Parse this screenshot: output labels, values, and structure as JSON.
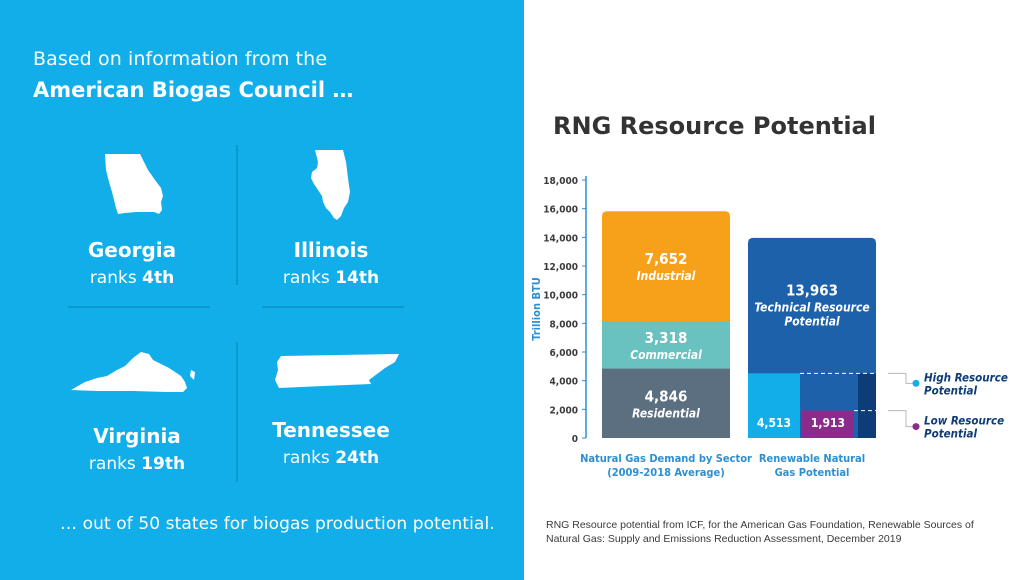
{
  "left_panel": {
    "background": "#12aeea",
    "intro_line1": "Based on information from the",
    "intro_line2": "American Biogas Council …",
    "states": [
      {
        "name": "Georgia",
        "rank_prefix": "ranks ",
        "rank": "4th",
        "icon": "georgia-map-icon"
      },
      {
        "name": "Illinois",
        "rank_prefix": "ranks ",
        "rank": "14th",
        "icon": "illinois-map-icon"
      },
      {
        "name": "Virginia",
        "rank_prefix": "ranks ",
        "rank": "19th",
        "icon": "virginia-map-icon"
      },
      {
        "name": "Tennessee",
        "rank_prefix": "ranks ",
        "rank": "24th",
        "icon": "tennessee-map-icon"
      }
    ],
    "outro": "… out of 50 states for biogas production potential."
  },
  "chart_data": {
    "type": "bar",
    "title": "RNG Resource Potential",
    "ylabel": "Trillion BTU",
    "ylim": [
      0,
      18000
    ],
    "yticks": [
      0,
      2000,
      4000,
      6000,
      8000,
      10000,
      12000,
      14000,
      16000,
      18000
    ],
    "ytick_labels": [
      "0",
      "2,000",
      "4,000",
      "6,000",
      "8,000",
      "10,000",
      "12,000",
      "14,000",
      "16,000",
      "18,000"
    ],
    "categories": [
      {
        "line1": "Natural Gas Demand by Sector",
        "line2": "(2009-2018 Average)"
      },
      {
        "line1": "Renewable Natural",
        "line2": "Gas Potential"
      }
    ],
    "stacks": [
      {
        "category_index": 0,
        "segments": [
          {
            "name": "Residential",
            "value": 4846,
            "value_label": "4,846",
            "color": "#5b6f80"
          },
          {
            "name": "Commercial",
            "value": 3318,
            "value_label": "3,318",
            "color": "#69c2bf"
          },
          {
            "name": "Industrial",
            "value": 7652,
            "value_label": "7,652",
            "color": "#f7a11a"
          }
        ]
      }
    ],
    "renewable": {
      "category_index": 1,
      "technical": {
        "name_line1": "Technical Resource",
        "name_line2": "Potential",
        "value": 13963,
        "value_label": "13,963",
        "color": "#1e61ab"
      },
      "high": {
        "name_line1": "High Resource",
        "name_line2": "Potential",
        "value": 4513,
        "value_label": "4,513",
        "color": "#12aeea"
      },
      "low": {
        "name_line1": "Low Resource",
        "name_line2": "Potential",
        "value": 1913,
        "value_label": "1,913",
        "color": "#8b2b8c"
      }
    },
    "colors": {
      "axis": "#2d8fd2",
      "back_bar": "#0d3c77",
      "callout": "#12aeea",
      "low_marker": "#8b2b8c"
    }
  },
  "source_note": "RNG Resource potential from ICF, for the American Gas Foundation, Renewable Sources of Natural Gas: Supply and Emissions Reduction Assessment, December 2019"
}
